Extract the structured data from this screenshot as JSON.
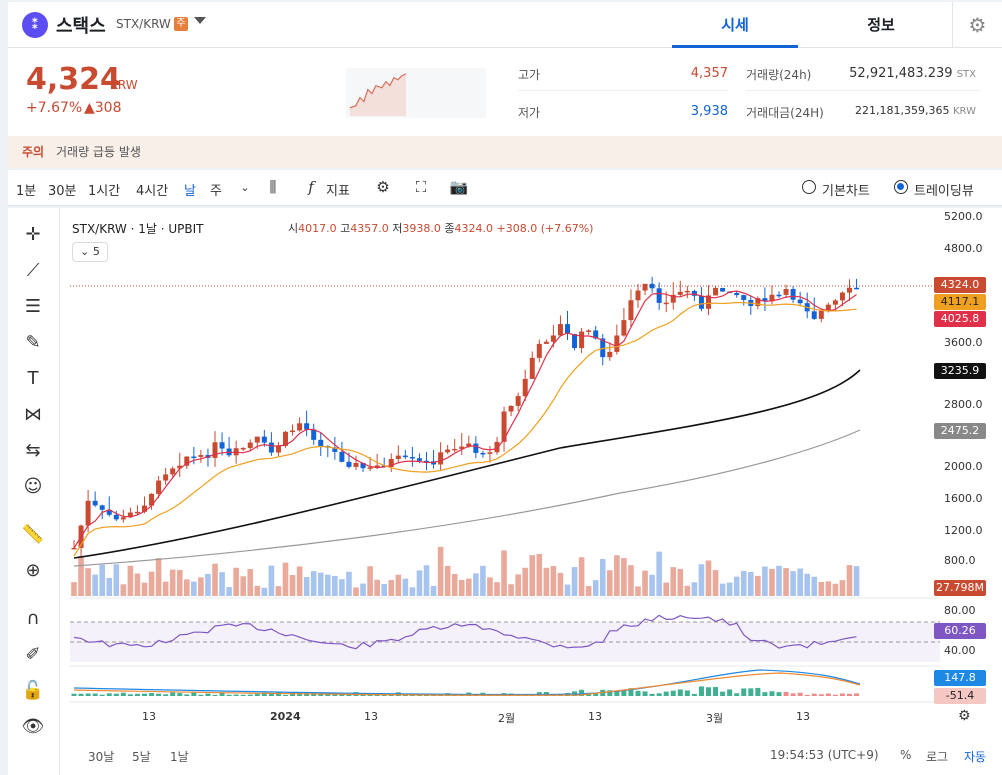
{
  "header": {
    "coin_name": "스택스",
    "pair": "STX/KRW",
    "warning_badge": "주",
    "tabs": [
      "시세",
      "정보"
    ]
  },
  "summary": {
    "price": "4,324",
    "currency": "KRW",
    "change_rate": "+7.67%",
    "change_amount": "▲308",
    "high_label": "고가",
    "high": "4,357",
    "low_label": "저가",
    "low": "3,938",
    "volume_label": "거래량(24h)",
    "volume": "52,921,483.239",
    "volume_unit": "STX",
    "amount_label": "거래대금(24H)",
    "amount": "221,181,359,365",
    "amount_unit": "KRW"
  },
  "alert": {
    "title": "주의",
    "text": "거래량 급등 발생"
  },
  "toolbar": {
    "periods": [
      "1분",
      "30분",
      "1시간",
      "4시간",
      "날",
      "주"
    ],
    "active_period": "날",
    "indicator": "지표",
    "radio_basic": "기본차트",
    "radio_trading": "트레이딩뷰"
  },
  "legend": {
    "symbol": "STX/KRW · 1날 · UPBIT",
    "open_k": "시",
    "open": "4017.0",
    "high_k": "고",
    "high": "4357.0",
    "low_k": "저",
    "low": "3938.0",
    "close_k": "종",
    "close": "4324.0",
    "change": "+308.0 (+7.67%)",
    "indicators_count": "5"
  },
  "axis": {
    "price_ticks": [
      "5200.0",
      "4800.0",
      "3600.0",
      "2800.0",
      "2000.0",
      "1600.0",
      "1200.0",
      "800.0"
    ],
    "tags": {
      "last": "4324.0",
      "ma1": "4117.1",
      "ma2": "4025.8",
      "ma3": "3235.9",
      "ma4": "2475.2",
      "volume": "27.798M",
      "rsi": "60.26",
      "macd1": "147.8",
      "macd2": "-51.4"
    },
    "rsi_ticks": [
      "80.00",
      "40.00"
    ],
    "x_labels": [
      "13",
      "2024",
      "13",
      "2월",
      "13",
      "3월",
      "13"
    ]
  },
  "bottom": {
    "ranges": [
      "30날",
      "5날",
      "1날"
    ],
    "time": "19:54:53 (UTC+9)",
    "percent": "%",
    "log": "로그",
    "auto": "자동"
  },
  "colors": {
    "up": "#c84a31",
    "down": "#1262d8",
    "accent": "#1262d8"
  }
}
